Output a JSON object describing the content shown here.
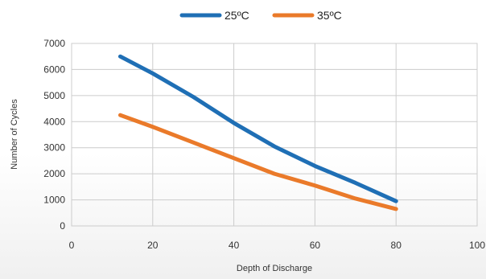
{
  "chart_data": {
    "type": "line",
    "title": "",
    "xlabel": "Depth of Discharge",
    "ylabel": "Number of Cycles",
    "xlim": [
      0,
      100
    ],
    "ylim": [
      0,
      7000
    ],
    "xticks": [
      0,
      20,
      40,
      60,
      80,
      100
    ],
    "yticks": [
      0,
      1000,
      2000,
      3000,
      4000,
      5000,
      6000,
      7000
    ],
    "grid": true,
    "legend_position": "top-center",
    "series": [
      {
        "name": "25ºC",
        "color": "#1f6fb5",
        "points": [
          [
            12,
            6500
          ],
          [
            20,
            5850
          ],
          [
            30,
            4950
          ],
          [
            40,
            3950
          ],
          [
            50,
            3050
          ],
          [
            60,
            2300
          ],
          [
            70,
            1650
          ],
          [
            80,
            950
          ]
        ]
      },
      {
        "name": "35ºC",
        "color": "#ea7a2a",
        "points": [
          [
            12,
            4250
          ],
          [
            20,
            3800
          ],
          [
            30,
            3200
          ],
          [
            40,
            2600
          ],
          [
            50,
            2000
          ],
          [
            60,
            1550
          ],
          [
            70,
            1050
          ],
          [
            80,
            650
          ]
        ]
      }
    ]
  }
}
